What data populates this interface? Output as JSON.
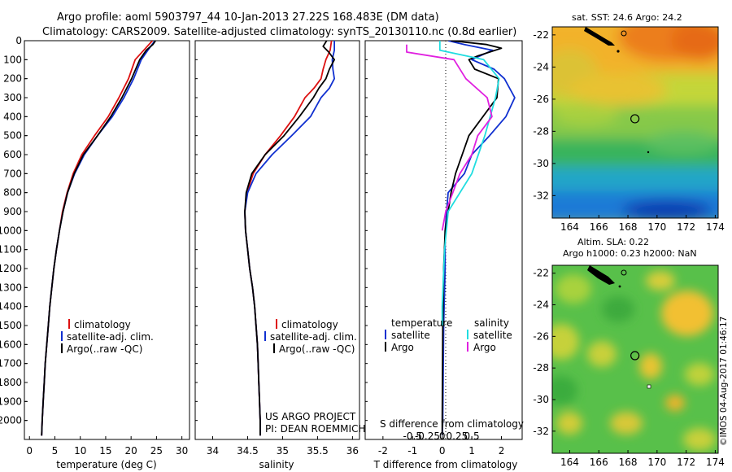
{
  "header": {
    "line1": "Argo profile: aoml 5903797_44 10-Jan-2013 27.22S 168.483E (DM data)",
    "line2": "Climatology: CARS2009. Satellite-adjusted climatology: synTS_20130110.nc (0.8d earlier)"
  },
  "colors": {
    "climatology": "#dd1111",
    "satellite": "#1030d0",
    "argo": "#000000",
    "sat_salinity": "#20dde0",
    "argo_salinity": "#e020e0"
  },
  "chart_data": [
    {
      "id": "temperature",
      "type": "line",
      "xlabel": "temperature (deg C)",
      "ylabel": "",
      "xlim": [
        -1,
        31.5
      ],
      "ylim": [
        2100,
        0
      ],
      "xticks": [
        0,
        5,
        10,
        15,
        20,
        25,
        30
      ],
      "yticks": [
        0,
        100,
        200,
        300,
        400,
        500,
        600,
        700,
        800,
        900,
        1000,
        1100,
        1200,
        1300,
        1400,
        1500,
        1600,
        1700,
        1800,
        1900,
        2000
      ],
      "legend": {
        "position": "bottom-center",
        "entries": [
          "climatology",
          "satellite-adj. clim.",
          "Argo(..raw -QC)"
        ]
      },
      "series": [
        {
          "name": "climatology",
          "color": "#dd1111",
          "points": [
            [
              24.2,
              0
            ],
            [
              22.5,
              50
            ],
            [
              20.8,
              100
            ],
            [
              19.5,
              200
            ],
            [
              17.6,
              300
            ],
            [
              15.5,
              400
            ],
            [
              12.8,
              500
            ],
            [
              10.3,
              600
            ],
            [
              8.6,
              700
            ],
            [
              7.4,
              800
            ],
            [
              6.5,
              900
            ],
            [
              5.9,
              1000
            ],
            [
              5.3,
              1100
            ],
            [
              4.8,
              1200
            ],
            [
              4.4,
              1300
            ],
            [
              4.0,
              1400
            ],
            [
              3.7,
              1500
            ],
            [
              3.4,
              1600
            ],
            [
              3.1,
              1700
            ],
            [
              2.9,
              1800
            ],
            [
              2.7,
              1900
            ],
            [
              2.5,
              2000
            ],
            [
              2.4,
              2080
            ]
          ]
        },
        {
          "name": "satellite-adj. clim.",
          "color": "#1030d0",
          "points": [
            [
              24.7,
              0
            ],
            [
              23.3,
              50
            ],
            [
              22.0,
              100
            ],
            [
              20.5,
              200
            ],
            [
              18.6,
              300
            ],
            [
              16.3,
              400
            ],
            [
              13.4,
              500
            ],
            [
              10.8,
              600
            ],
            [
              8.9,
              700
            ],
            [
              7.5,
              800
            ],
            [
              6.6,
              900
            ],
            [
              5.9,
              1000
            ],
            [
              5.3,
              1100
            ],
            [
              4.8,
              1200
            ],
            [
              4.4,
              1300
            ],
            [
              4.0,
              1400
            ],
            [
              3.7,
              1500
            ],
            [
              3.4,
              1600
            ],
            [
              3.1,
              1700
            ],
            [
              2.9,
              1800
            ],
            [
              2.7,
              1900
            ],
            [
              2.5,
              2000
            ],
            [
              2.4,
              2080
            ]
          ]
        },
        {
          "name": "Argo(..raw -QC)",
          "color": "#000000",
          "points": [
            [
              24.8,
              0
            ],
            [
              24.3,
              20
            ],
            [
              23.0,
              50
            ],
            [
              21.7,
              100
            ],
            [
              20.1,
              200
            ],
            [
              18.2,
              300
            ],
            [
              16.0,
              400
            ],
            [
              13.4,
              500
            ],
            [
              10.6,
              600
            ],
            [
              8.8,
              700
            ],
            [
              7.5,
              800
            ],
            [
              6.6,
              900
            ],
            [
              5.9,
              1000
            ],
            [
              5.3,
              1100
            ],
            [
              4.8,
              1200
            ],
            [
              4.4,
              1300
            ],
            [
              4.0,
              1400
            ],
            [
              3.7,
              1500
            ],
            [
              3.4,
              1600
            ],
            [
              3.1,
              1700
            ],
            [
              2.9,
              1800
            ],
            [
              2.7,
              1900
            ],
            [
              2.5,
              2000
            ],
            [
              2.4,
              2080
            ]
          ]
        }
      ]
    },
    {
      "id": "salinity",
      "type": "line",
      "xlabel": "salinity",
      "ylabel": "",
      "xlim": [
        33.75,
        36.1
      ],
      "ylim": [
        2100,
        0
      ],
      "xticks": [
        34,
        34.5,
        35,
        35.5,
        36
      ],
      "legend": {
        "position": "bottom-right",
        "entries": [
          "climatology",
          "satellite-adj. clim.",
          "Argo(..raw -QC)"
        ]
      },
      "annotations": [
        "US ARGO PROJECT",
        "PI: DEAN ROEMMICH"
      ],
      "series": [
        {
          "name": "climatology",
          "color": "#dd1111",
          "points": [
            [
              35.7,
              0
            ],
            [
              35.68,
              50
            ],
            [
              35.62,
              100
            ],
            [
              35.58,
              150
            ],
            [
              35.55,
              200
            ],
            [
              35.45,
              250
            ],
            [
              35.32,
              300
            ],
            [
              35.17,
              400
            ],
            [
              34.97,
              500
            ],
            [
              34.75,
              600
            ],
            [
              34.58,
              700
            ],
            [
              34.49,
              800
            ],
            [
              34.46,
              900
            ],
            [
              34.47,
              1000
            ],
            [
              34.5,
              1100
            ],
            [
              34.53,
              1200
            ],
            [
              34.57,
              1300
            ],
            [
              34.6,
              1400
            ],
            [
              34.62,
              1500
            ],
            [
              34.64,
              1600
            ],
            [
              34.65,
              1700
            ],
            [
              34.66,
              1800
            ],
            [
              34.67,
              1900
            ],
            [
              34.68,
              2000
            ],
            [
              34.68,
              2080
            ]
          ]
        },
        {
          "name": "satellite-adj. clim.",
          "color": "#1030d0",
          "points": [
            [
              35.74,
              0
            ],
            [
              35.74,
              50
            ],
            [
              35.71,
              100
            ],
            [
              35.72,
              150
            ],
            [
              35.74,
              200
            ],
            [
              35.67,
              250
            ],
            [
              35.55,
              300
            ],
            [
              35.4,
              400
            ],
            [
              35.13,
              500
            ],
            [
              34.85,
              600
            ],
            [
              34.62,
              700
            ],
            [
              34.5,
              800
            ],
            [
              34.46,
              900
            ],
            [
              34.47,
              1000
            ],
            [
              34.5,
              1100
            ],
            [
              34.53,
              1200
            ],
            [
              34.57,
              1300
            ],
            [
              34.6,
              1400
            ],
            [
              34.62,
              1500
            ],
            [
              34.64,
              1600
            ],
            [
              34.65,
              1700
            ],
            [
              34.66,
              1800
            ],
            [
              34.67,
              1900
            ],
            [
              34.68,
              2000
            ],
            [
              34.68,
              2080
            ]
          ]
        },
        {
          "name": "Argo(..raw -QC)",
          "color": "#000000",
          "points": [
            [
              35.63,
              0
            ],
            [
              35.58,
              30
            ],
            [
              35.66,
              60
            ],
            [
              35.74,
              100
            ],
            [
              35.67,
              150
            ],
            [
              35.62,
              200
            ],
            [
              35.52,
              250
            ],
            [
              35.44,
              300
            ],
            [
              35.24,
              400
            ],
            [
              35.02,
              500
            ],
            [
              34.75,
              600
            ],
            [
              34.56,
              700
            ],
            [
              34.48,
              800
            ],
            [
              34.46,
              900
            ],
            [
              34.47,
              1000
            ],
            [
              34.5,
              1100
            ],
            [
              34.53,
              1200
            ],
            [
              34.57,
              1300
            ],
            [
              34.6,
              1400
            ],
            [
              34.62,
              1500
            ],
            [
              34.64,
              1600
            ],
            [
              34.65,
              1700
            ],
            [
              34.66,
              1800
            ],
            [
              34.67,
              1900
            ],
            [
              34.68,
              2000
            ],
            [
              34.68,
              2080
            ]
          ]
        }
      ]
    },
    {
      "id": "difference",
      "type": "line",
      "xlabel": "T difference from climatology",
      "xlabel_top": "S difference from climatology",
      "xlim": [
        -2.6,
        2.7
      ],
      "ylim": [
        2100,
        0
      ],
      "xticks": [
        -2,
        -1,
        0,
        1,
        2
      ],
      "sticks": [
        -0.5,
        -0.25,
        0,
        0.25,
        0.5
      ],
      "legend": {
        "position": "bottom",
        "temperature_header": "temperature",
        "salinity_header": "salinity",
        "entries": [
          "satellite",
          "Argo",
          "satellite",
          "Argo"
        ]
      },
      "series": [
        {
          "name": "satellite",
          "group": "temperature",
          "color": "#1030d0",
          "points": [
            [
              0.2,
              0
            ],
            [
              0.75,
              20
            ],
            [
              1.7,
              50
            ],
            [
              1.0,
              100
            ],
            [
              1.75,
              150
            ],
            [
              2.1,
              200
            ],
            [
              2.45,
              300
            ],
            [
              2.15,
              400
            ],
            [
              1.6,
              500
            ],
            [
              1.0,
              600
            ],
            [
              0.75,
              700
            ],
            [
              0.2,
              800
            ],
            [
              0.1,
              1000
            ],
            [
              0.1,
              1200
            ],
            [
              0.05,
              1500
            ],
            [
              0.02,
              2000
            ],
            [
              0.0,
              2080
            ]
          ]
        },
        {
          "name": "Argo",
          "group": "temperature",
          "color": "#000000",
          "points": [
            [
              0.3,
              0
            ],
            [
              1.5,
              20
            ],
            [
              2.0,
              40
            ],
            [
              1.6,
              60
            ],
            [
              1.2,
              80
            ],
            [
              0.9,
              100
            ],
            [
              1.1,
              150
            ],
            [
              1.9,
              200
            ],
            [
              1.85,
              300
            ],
            [
              0.9,
              500
            ],
            [
              0.45,
              700
            ],
            [
              0.3,
              800
            ],
            [
              0.1,
              1000
            ],
            [
              0.05,
              1200
            ],
            [
              0.02,
              1500
            ],
            [
              0.0,
              2000
            ],
            [
              0.0,
              2080
            ]
          ]
        },
        {
          "name": "satellite",
          "group": "salinity",
          "color": "#20dde0",
          "points": [
            [
              -0.02,
              0
            ],
            [
              -0.02,
              50
            ],
            [
              0.35,
              100
            ],
            [
              0.48,
              200
            ],
            [
              0.45,
              300
            ],
            [
              0.36,
              500
            ],
            [
              0.25,
              700
            ],
            [
              0.05,
              900
            ],
            [
              0.02,
              1100
            ],
            [
              0.0,
              1400
            ],
            [
              0.0,
              1500
            ]
          ]
        },
        {
          "name": "Argo",
          "group": "salinity",
          "color": "#e020e0",
          "points": [
            [
              -0.3,
              20
            ],
            [
              -0.3,
              60
            ],
            [
              0.1,
              100
            ],
            [
              0.2,
              200
            ],
            [
              0.38,
              300
            ],
            [
              0.42,
              400
            ],
            [
              0.3,
              500
            ],
            [
              0.25,
              600
            ],
            [
              0.15,
              700
            ],
            [
              0.03,
              900
            ],
            [
              0.0,
              1000
            ]
          ]
        }
      ]
    },
    {
      "id": "map-sst",
      "type": "heatmap",
      "title": "sat. SST: 24.6 Argo: 24.2",
      "xlim": [
        162.8,
        174.2
      ],
      "ylim": [
        -33.4,
        -21.5
      ],
      "xticks": [
        164,
        166,
        168,
        170,
        172,
        174
      ],
      "yticks": [
        -22,
        -24,
        -26,
        -28,
        -30,
        -32
      ],
      "argo_position": [
        168.48,
        -27.22
      ]
    },
    {
      "id": "map-sla",
      "type": "heatmap",
      "title_line1": "Altim. SLA: 0.22",
      "title_line2": "Argo h1000: 0.23 h2000: NaN",
      "xlim": [
        162.8,
        174.2
      ],
      "ylim": [
        -33.4,
        -21.5
      ],
      "xticks": [
        164,
        166,
        168,
        170,
        172,
        174
      ],
      "yticks": [
        -22,
        -24,
        -26,
        -28,
        -30,
        -32
      ],
      "argo_position": [
        168.48,
        -27.22
      ]
    }
  ],
  "credit": "©IMOS 04-Aug-2017 01:46:17"
}
